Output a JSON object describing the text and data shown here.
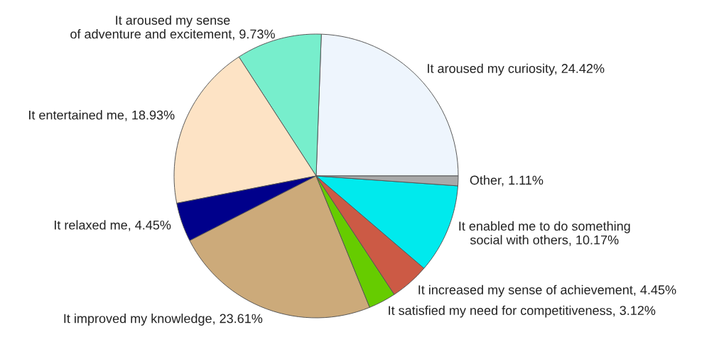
{
  "chart_data": {
    "type": "pie",
    "categories": [
      "It aroused my curiosity",
      "It aroused my sense\nof adventure and excitement",
      "It entertained me",
      "It relaxed me",
      "It improved my knowledge",
      "It satisfied my need for competitiveness",
      "It increased my sense of achievement",
      "It enabled me to do something\nsocial with others",
      "Other"
    ],
    "values": [
      24.42,
      9.73,
      18.93,
      4.45,
      23.61,
      3.12,
      4.45,
      10.17,
      1.11
    ],
    "value_labels": [
      "24.42%",
      "9.73%",
      "18.93%",
      "4.45%",
      "23.61%",
      "3.12%",
      "4.45%",
      "10.17%",
      "1.11%"
    ],
    "colors": [
      "#eef5fd",
      "#77eecc",
      "#fde3c5",
      "#00008b",
      "#ccaa7a",
      "#66cc00",
      "#cc5a45",
      "#00eaed",
      "#a9a9a9"
    ],
    "legend": false
  }
}
